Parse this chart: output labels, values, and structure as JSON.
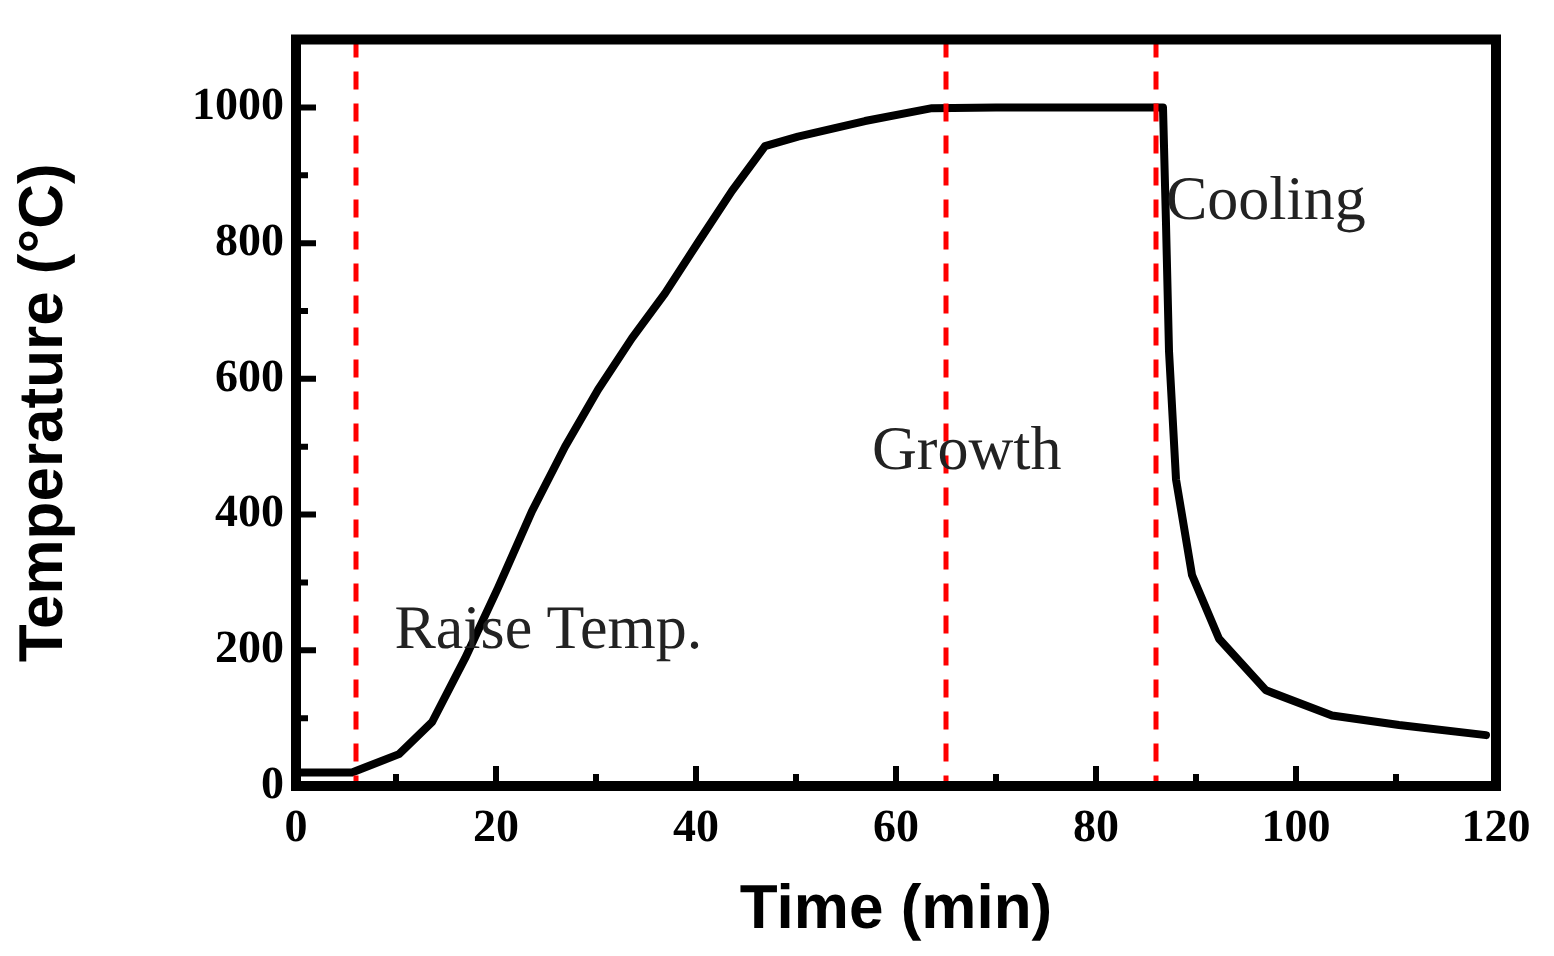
{
  "chart_data": {
    "type": "line",
    "xlabel": "Time (min)",
    "ylabel": "Temperature (°C)",
    "xlim": [
      0,
      120
    ],
    "xticks": [
      0,
      20,
      40,
      60,
      80,
      100,
      120
    ],
    "ylim": [
      0,
      1100
    ],
    "yticks": [
      0,
      200,
      400,
      600,
      800,
      1000
    ],
    "legend": false,
    "marker": "none",
    "line_style": "solid",
    "series": [
      {
        "color": "#000000",
        "x": [
          0,
          5.6,
          10.3,
          13.6,
          16.9,
          20.2,
          23.6,
          26.9,
          30.2,
          33.6,
          36.9,
          40.2,
          43.6,
          46.9,
          50.2,
          56.9,
          63.6,
          70,
          80,
          86.7,
          87,
          87.3,
          88,
          89.6,
          92.3,
          97,
          103.6,
          110.3,
          119
        ],
        "values": [
          20,
          20,
          47,
          94,
          188,
          292,
          405,
          500,
          584,
          660,
          726,
          801,
          877,
          943,
          957,
          980,
          999,
          1000,
          1000,
          1000,
          829,
          641,
          452,
          311,
          217,
          141,
          104,
          90,
          75
        ]
      }
    ],
    "ref_lines": [
      {
        "axis": "x",
        "value": 6,
        "color": "#ff0000",
        "line_style": "dashed"
      },
      {
        "axis": "x",
        "value": 65,
        "color": "#ff0000",
        "line_style": "dashed"
      },
      {
        "axis": "x",
        "value": 86,
        "color": "#ff0000",
        "line_style": "dashed"
      }
    ],
    "annotations": [
      "Raise Temp.",
      "Growth",
      "Cooling"
    ]
  }
}
